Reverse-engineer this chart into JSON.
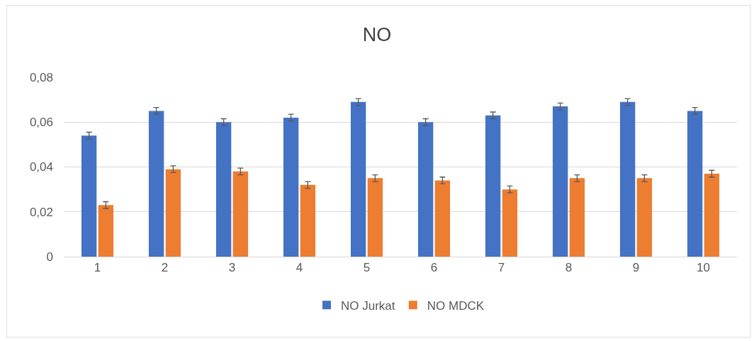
{
  "chart_data": {
    "type": "bar",
    "title": "NO",
    "categories": [
      "1",
      "2",
      "3",
      "4",
      "5",
      "6",
      "7",
      "8",
      "9",
      "10"
    ],
    "series": [
      {
        "name": "NO Jurkat",
        "color": "#4472c4",
        "values": [
          0.054,
          0.065,
          0.06,
          0.062,
          0.069,
          0.06,
          0.063,
          0.067,
          0.069,
          0.065
        ],
        "errors": [
          0.0015,
          0.0015,
          0.0015,
          0.0015,
          0.0015,
          0.0015,
          0.0015,
          0.0015,
          0.0015,
          0.0015
        ]
      },
      {
        "name": "NO MDCK",
        "color": "#ed7d31",
        "values": [
          0.023,
          0.039,
          0.038,
          0.032,
          0.035,
          0.034,
          0.03,
          0.035,
          0.035,
          0.037
        ],
        "errors": [
          0.0015,
          0.0015,
          0.0015,
          0.0015,
          0.0015,
          0.0015,
          0.0015,
          0.0015,
          0.0015,
          0.0015
        ]
      }
    ],
    "ylim": [
      0,
      0.08
    ],
    "yticks": [
      {
        "value": 0,
        "label": "0"
      },
      {
        "value": 0.02,
        "label": "0,02"
      },
      {
        "value": 0.04,
        "label": "0,04"
      },
      {
        "value": 0.06,
        "label": "0,06"
      },
      {
        "value": 0.08,
        "label": "0,08"
      }
    ],
    "grid": "y",
    "legend": "bottom"
  }
}
